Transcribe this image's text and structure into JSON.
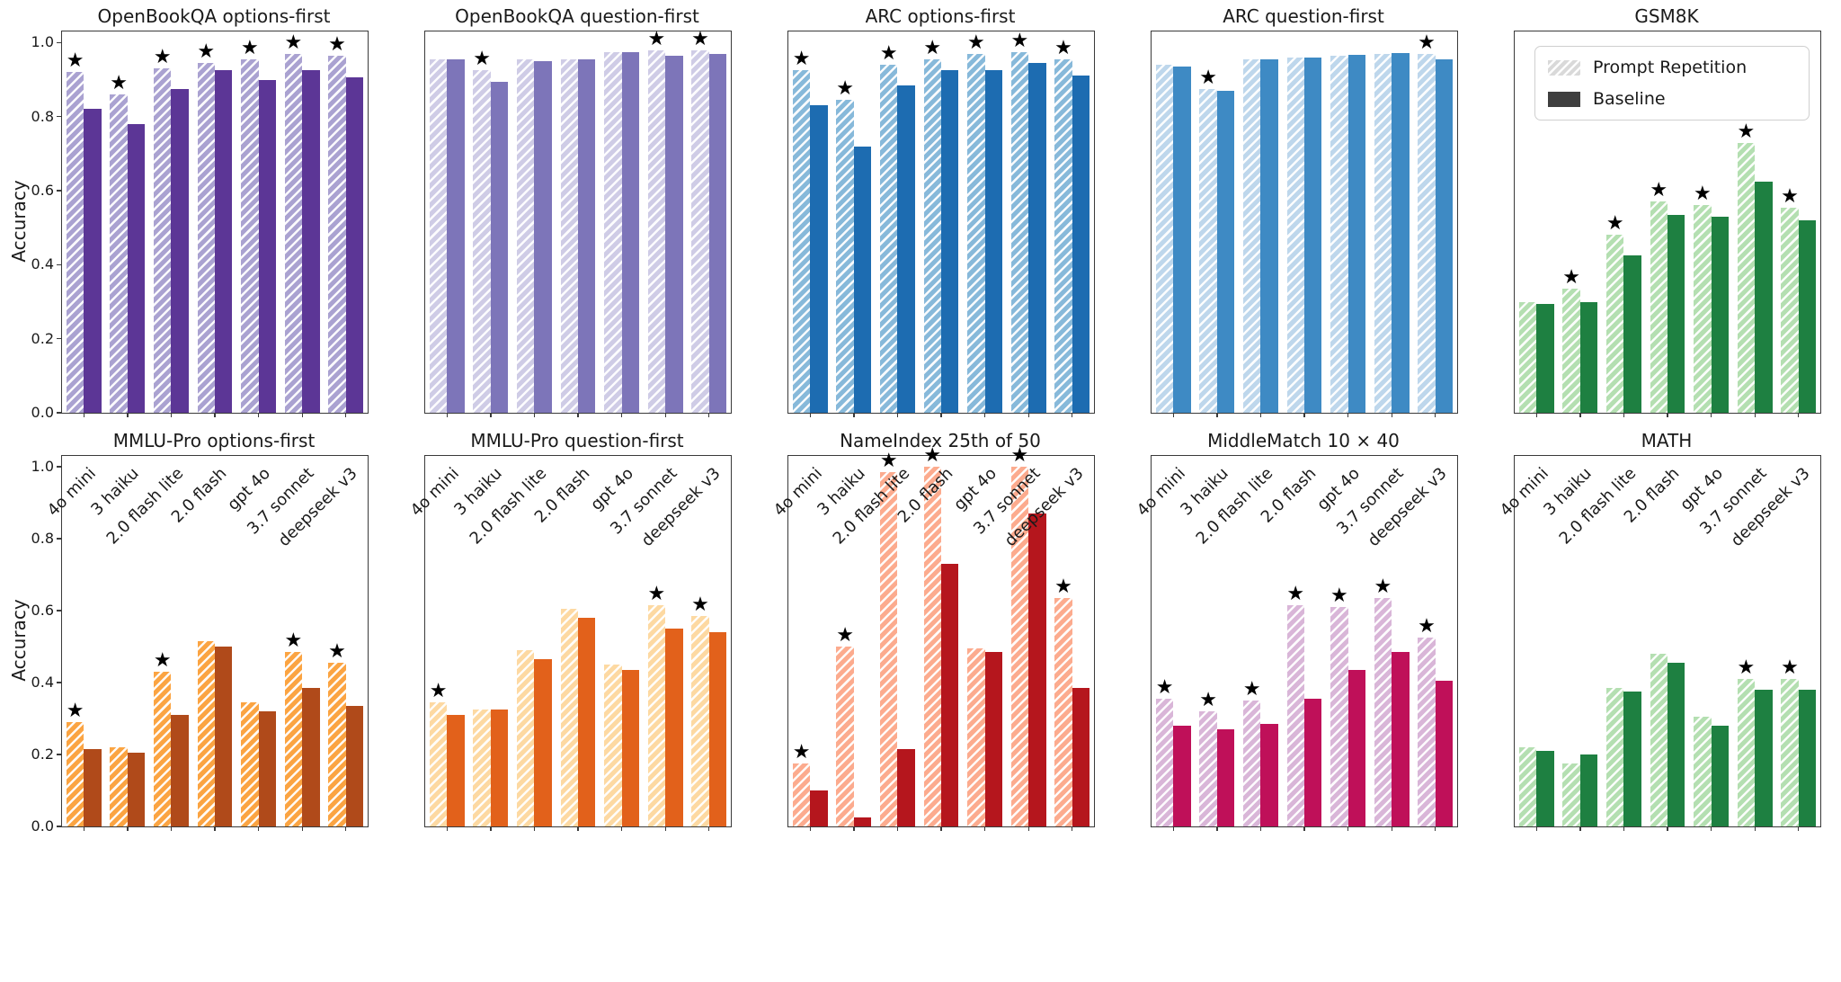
{
  "figure": {
    "ylabel": "Accuracy",
    "yticks": [
      "1.0",
      "0.8",
      "0.6",
      "0.4",
      "0.2",
      "0.0"
    ],
    "ylim": [
      0,
      1.03
    ],
    "grid": false,
    "marker_note": "black star above hatched bar marks significant improvement"
  },
  "legend": {
    "position": "top-right subplot (GSM8K), inside axes",
    "items": [
      {
        "label": "Prompt Repetition",
        "swatch": "hatched",
        "color": "#d9d9d9"
      },
      {
        "label": "Baseline",
        "swatch": "solid",
        "color": "#3f3f3f"
      }
    ]
  },
  "categories": [
    "4o mini",
    "3 haiku",
    "2.0 flash lite",
    "2.0 flash",
    "gpt 4o",
    "3.7 sonnet",
    "deepseek v3"
  ],
  "chart_data": [
    {
      "type": "bar",
      "title": "OpenBookQA options-first",
      "row": 0,
      "col": 0,
      "hatch_color": "#aaa2d1",
      "solid_color": "#5c3696",
      "series": [
        {
          "name": "Prompt Repetition",
          "values": [
            0.92,
            0.86,
            0.93,
            0.945,
            0.955,
            0.97,
            0.965
          ]
        },
        {
          "name": "Baseline",
          "values": [
            0.82,
            0.78,
            0.875,
            0.925,
            0.9,
            0.925,
            0.905
          ]
        }
      ],
      "stars": [
        true,
        true,
        true,
        true,
        true,
        true,
        true
      ]
    },
    {
      "type": "bar",
      "title": "OpenBookQA question-first",
      "row": 0,
      "col": 1,
      "hatch_color": "#cfcce6",
      "solid_color": "#7d75b9",
      "series": [
        {
          "name": "Prompt Repetition",
          "values": [
            0.955,
            0.925,
            0.955,
            0.955,
            0.975,
            0.98,
            0.98
          ]
        },
        {
          "name": "Baseline",
          "values": [
            0.955,
            0.895,
            0.95,
            0.955,
            0.975,
            0.965,
            0.97
          ]
        }
      ],
      "stars": [
        false,
        true,
        false,
        false,
        false,
        true,
        true
      ]
    },
    {
      "type": "bar",
      "title": "ARC options-first",
      "row": 0,
      "col": 2,
      "hatch_color": "#87b9da",
      "solid_color": "#1d6cb1",
      "series": [
        {
          "name": "Prompt Repetition",
          "values": [
            0.925,
            0.845,
            0.94,
            0.955,
            0.97,
            0.975,
            0.955
          ]
        },
        {
          "name": "Baseline",
          "values": [
            0.83,
            0.72,
            0.885,
            0.925,
            0.925,
            0.945,
            0.91
          ]
        }
      ],
      "stars": [
        true,
        true,
        true,
        true,
        true,
        true,
        true
      ]
    },
    {
      "type": "bar",
      "title": "ARC question-first",
      "row": 0,
      "col": 3,
      "hatch_color": "#bed7ec",
      "solid_color": "#3e8ac4",
      "series": [
        {
          "name": "Prompt Repetition",
          "values": [
            0.94,
            0.875,
            0.955,
            0.96,
            0.965,
            0.97,
            0.97
          ]
        },
        {
          "name": "Baseline",
          "values": [
            0.935,
            0.87,
            0.955,
            0.96,
            0.967,
            0.972,
            0.955
          ]
        }
      ],
      "stars": [
        false,
        true,
        false,
        false,
        false,
        false,
        true
      ]
    },
    {
      "type": "bar",
      "title": "GSM8K",
      "row": 0,
      "col": 4,
      "has_legend": true,
      "hatch_color": "#b4dfb1",
      "solid_color": "#1e8041",
      "series": [
        {
          "name": "Prompt Repetition",
          "values": [
            0.3,
            0.335,
            0.48,
            0.57,
            0.56,
            0.73,
            0.555
          ]
        },
        {
          "name": "Baseline",
          "values": [
            0.295,
            0.3,
            0.425,
            0.535,
            0.53,
            0.625,
            0.52
          ]
        }
      ],
      "stars": [
        false,
        true,
        true,
        true,
        true,
        true,
        true
      ]
    },
    {
      "type": "bar",
      "title": "MMLU-Pro options-first",
      "row": 1,
      "col": 0,
      "hatch_color": "#fba442",
      "solid_color": "#b04a1a",
      "series": [
        {
          "name": "Prompt Repetition",
          "values": [
            0.29,
            0.22,
            0.43,
            0.515,
            0.345,
            0.485,
            0.455
          ]
        },
        {
          "name": "Baseline",
          "values": [
            0.215,
            0.205,
            0.31,
            0.5,
            0.32,
            0.385,
            0.335
          ]
        }
      ],
      "stars": [
        true,
        false,
        true,
        false,
        false,
        true,
        true
      ]
    },
    {
      "type": "bar",
      "title": "MMLU-Pro question-first",
      "row": 1,
      "col": 1,
      "hatch_color": "#fdd9a2",
      "solid_color": "#e2611b",
      "series": [
        {
          "name": "Prompt Repetition",
          "values": [
            0.345,
            0.325,
            0.49,
            0.605,
            0.45,
            0.615,
            0.585
          ]
        },
        {
          "name": "Baseline",
          "values": [
            0.31,
            0.325,
            0.465,
            0.58,
            0.435,
            0.55,
            0.54
          ]
        }
      ],
      "stars": [
        true,
        false,
        false,
        false,
        false,
        true,
        true
      ]
    },
    {
      "type": "bar",
      "title": "NameIndex 25th of 50",
      "row": 1,
      "col": 2,
      "hatch_color": "#fcab8e",
      "solid_color": "#b5161d",
      "series": [
        {
          "name": "Prompt Repetition",
          "values": [
            0.175,
            0.5,
            0.985,
            1.0,
            0.495,
            1.0,
            0.635
          ]
        },
        {
          "name": "Baseline",
          "values": [
            0.1,
            0.025,
            0.215,
            0.73,
            0.485,
            0.87,
            0.385
          ]
        }
      ],
      "stars": [
        true,
        true,
        true,
        true,
        false,
        true,
        true
      ]
    },
    {
      "type": "bar",
      "title": "MiddleMatch 10 × 40",
      "row": 1,
      "col": 3,
      "hatch_color": "#d9b6d8",
      "solid_color": "#bf1059",
      "series": [
        {
          "name": "Prompt Repetition",
          "values": [
            0.355,
            0.32,
            0.35,
            0.615,
            0.61,
            0.635,
            0.525
          ]
        },
        {
          "name": "Baseline",
          "values": [
            0.28,
            0.27,
            0.285,
            0.355,
            0.435,
            0.485,
            0.405
          ]
        }
      ],
      "stars": [
        true,
        true,
        true,
        true,
        true,
        true,
        true
      ]
    },
    {
      "type": "bar",
      "title": "MATH",
      "row": 1,
      "col": 4,
      "hatch_color": "#b4dfb1",
      "solid_color": "#1e8041",
      "series": [
        {
          "name": "Prompt Repetition",
          "values": [
            0.22,
            0.175,
            0.385,
            0.48,
            0.305,
            0.41,
            0.41
          ]
        },
        {
          "name": "Baseline",
          "values": [
            0.21,
            0.2,
            0.375,
            0.455,
            0.28,
            0.38,
            0.38
          ]
        }
      ],
      "stars": [
        false,
        false,
        false,
        false,
        false,
        true,
        true
      ]
    }
  ]
}
